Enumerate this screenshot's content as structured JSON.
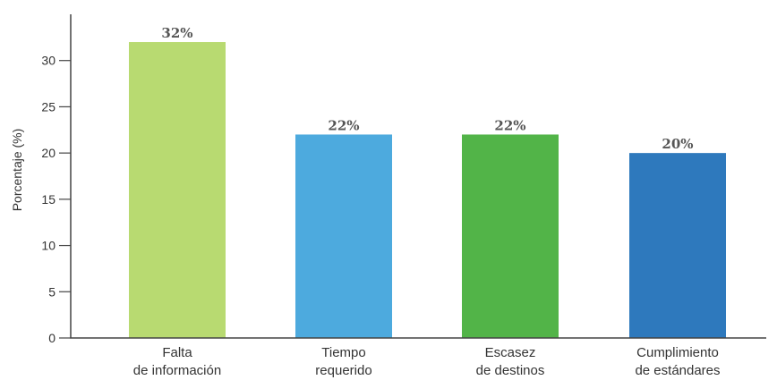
{
  "chart_data": {
    "type": "bar",
    "categories": [
      [
        "Falta",
        "de información"
      ],
      [
        "Tiempo",
        "requerido"
      ],
      [
        "Escasez",
        "de destinos"
      ],
      [
        "Cumplimiento",
        "de estándares"
      ]
    ],
    "values": [
      32,
      22,
      22,
      20
    ],
    "value_labels": [
      "32%",
      "22%",
      "22%",
      "20%"
    ],
    "colors": [
      "#b8da71",
      "#4daade",
      "#52b448",
      "#2e79bd"
    ],
    "ylabel": "Porcentaje (%)",
    "xlabel": "",
    "ylim": [
      0,
      35
    ],
    "yticks": [
      0,
      5,
      10,
      15,
      20,
      25,
      30
    ],
    "grid": false,
    "legend": "none"
  }
}
